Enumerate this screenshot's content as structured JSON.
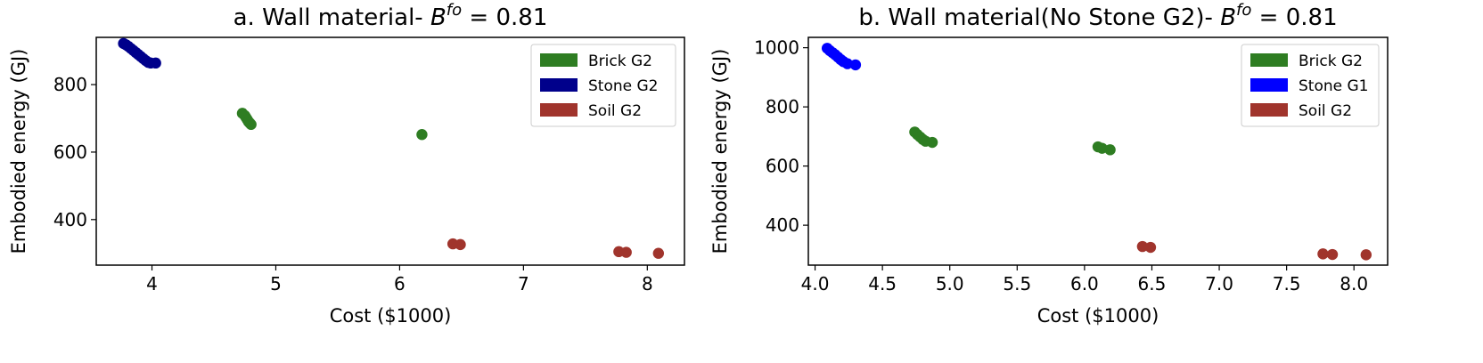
{
  "chart_data": [
    {
      "type": "scatter",
      "title": "a. Wall material- ",
      "title_math": {
        "base": "B",
        "sup": "fo",
        "rest": " = 0.81"
      },
      "xlabel": "Cost ($1000)",
      "ylabel": "Embodied energy (GJ)",
      "xlim": [
        3.55,
        8.3
      ],
      "ylim": [
        265,
        940
      ],
      "xticks": [
        4,
        5,
        6,
        7,
        8
      ],
      "xtick_labels": [
        "4",
        "5",
        "6",
        "7",
        "8"
      ],
      "yticks": [
        400,
        600,
        800
      ],
      "ytick_labels": [
        "400",
        "600",
        "800"
      ],
      "grid": false,
      "legend_position": "top-right",
      "series": [
        {
          "name": "Brick G2",
          "color": "#2e7d22",
          "points": [
            [
              4.73,
              715
            ],
            [
              4.75,
              708
            ],
            [
              4.76,
              702
            ],
            [
              4.77,
              696
            ],
            [
              4.78,
              690
            ],
            [
              4.79,
              686
            ],
            [
              4.8,
              682
            ],
            [
              6.18,
              652
            ]
          ]
        },
        {
          "name": "Stone G2",
          "color": "#00008b",
          "points": [
            [
              3.77,
              922
            ],
            [
              3.79,
              918
            ],
            [
              3.81,
              913
            ],
            [
              3.83,
              907
            ],
            [
              3.85,
              901
            ],
            [
              3.87,
              895
            ],
            [
              3.89,
              889
            ],
            [
              3.91,
              883
            ],
            [
              3.93,
              877
            ],
            [
              3.95,
              871
            ],
            [
              3.97,
              866
            ],
            [
              3.99,
              864
            ],
            [
              4.03,
              864
            ]
          ]
        },
        {
          "name": "Soil G2",
          "color": "#a0342c",
          "points": [
            [
              6.43,
              328
            ],
            [
              6.49,
              326
            ],
            [
              7.77,
              305
            ],
            [
              7.83,
              303
            ],
            [
              8.09,
              300
            ]
          ]
        }
      ]
    },
    {
      "type": "scatter",
      "title": "b. Wall material(No Stone G2)- ",
      "title_math": {
        "base": "B",
        "sup": "fo",
        "rest": " = 0.81"
      },
      "xlabel": "Cost ($1000)",
      "ylabel": "Embodied energy (GJ)",
      "xlim": [
        3.95,
        8.25
      ],
      "ylim": [
        265,
        1035
      ],
      "xticks": [
        4.0,
        4.5,
        5.0,
        5.5,
        6.0,
        6.5,
        7.0,
        7.5,
        8.0
      ],
      "xtick_labels": [
        "4.0",
        "4.5",
        "5.0",
        "5.5",
        "6.0",
        "6.5",
        "7.0",
        "7.5",
        "8.0"
      ],
      "yticks": [
        400,
        600,
        800,
        1000
      ],
      "ytick_labels": [
        "400",
        "600",
        "800",
        "1000"
      ],
      "grid": false,
      "legend_position": "top-right",
      "series": [
        {
          "name": "Brick G2",
          "color": "#2e7d22",
          "points": [
            [
              4.74,
              715
            ],
            [
              4.76,
              706
            ],
            [
              4.78,
              698
            ],
            [
              4.8,
              690
            ],
            [
              4.82,
              684
            ],
            [
              4.87,
              680
            ],
            [
              6.1,
              665
            ],
            [
              6.13,
              660
            ],
            [
              6.19,
              655
            ]
          ]
        },
        {
          "name": "Stone G1",
          "color": "#0000ff",
          "points": [
            [
              4.09,
              998
            ],
            [
              4.11,
              990
            ],
            [
              4.13,
              983
            ],
            [
              4.15,
              976
            ],
            [
              4.17,
              968
            ],
            [
              4.19,
              960
            ],
            [
              4.21,
              953
            ],
            [
              4.24,
              946
            ],
            [
              4.3,
              942
            ]
          ]
        },
        {
          "name": "Soil G2",
          "color": "#a0342c",
          "points": [
            [
              6.43,
              328
            ],
            [
              6.49,
              325
            ],
            [
              7.77,
              303
            ],
            [
              7.84,
              301
            ],
            [
              8.09,
              300
            ]
          ]
        }
      ]
    }
  ]
}
